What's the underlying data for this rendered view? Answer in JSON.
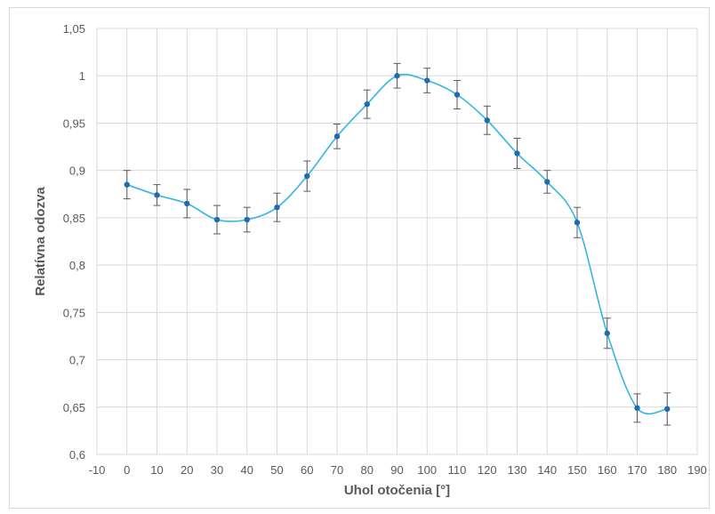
{
  "chart_data": {
    "type": "scatter",
    "title": "",
    "xlabel": "Uhol otočenia [°]",
    "ylabel": "Relatívna odozva",
    "xlim": [
      -10,
      190
    ],
    "ylim": [
      0.6,
      1.05
    ],
    "x_ticks": [
      -10,
      0,
      10,
      20,
      30,
      40,
      50,
      60,
      70,
      80,
      90,
      100,
      110,
      120,
      130,
      140,
      150,
      160,
      170,
      180,
      190
    ],
    "y_ticks": [
      0.6,
      0.65,
      0.7,
      0.75,
      0.8,
      0.85,
      0.9,
      0.95,
      1,
      1.05
    ],
    "x_tick_labels": [
      "-10",
      "0",
      "10",
      "20",
      "30",
      "40",
      "50",
      "60",
      "70",
      "80",
      "90",
      "100",
      "110",
      "120",
      "130",
      "140",
      "150",
      "160",
      "170",
      "180",
      "190"
    ],
    "y_tick_labels": [
      "0,6",
      "0,65",
      "0,7",
      "0,75",
      "0,8",
      "0,85",
      "0,9",
      "0,95",
      "1",
      "1,05"
    ],
    "grid": true,
    "smoothed_line": true,
    "series": [
      {
        "x": [
          0,
          10,
          20,
          30,
          40,
          50,
          60,
          70,
          80,
          90,
          100,
          110,
          120,
          130,
          140,
          150,
          160,
          170,
          180
        ],
        "y": [
          0.885,
          0.874,
          0.865,
          0.848,
          0.848,
          0.861,
          0.894,
          0.936,
          0.97,
          1.0,
          0.995,
          0.98,
          0.953,
          0.918,
          0.888,
          0.845,
          0.728,
          0.649,
          0.648
        ],
        "error": [
          0.015,
          0.011,
          0.015,
          0.015,
          0.013,
          0.015,
          0.016,
          0.013,
          0.015,
          0.013,
          0.013,
          0.015,
          0.015,
          0.016,
          0.012,
          0.016,
          0.016,
          0.015,
          0.017
        ]
      }
    ],
    "colors": {
      "line": "#33b5e5",
      "marker": "#1f6bb0",
      "error_bar": "#595959",
      "grid": "#d9d9d9",
      "text": "#595959"
    }
  }
}
